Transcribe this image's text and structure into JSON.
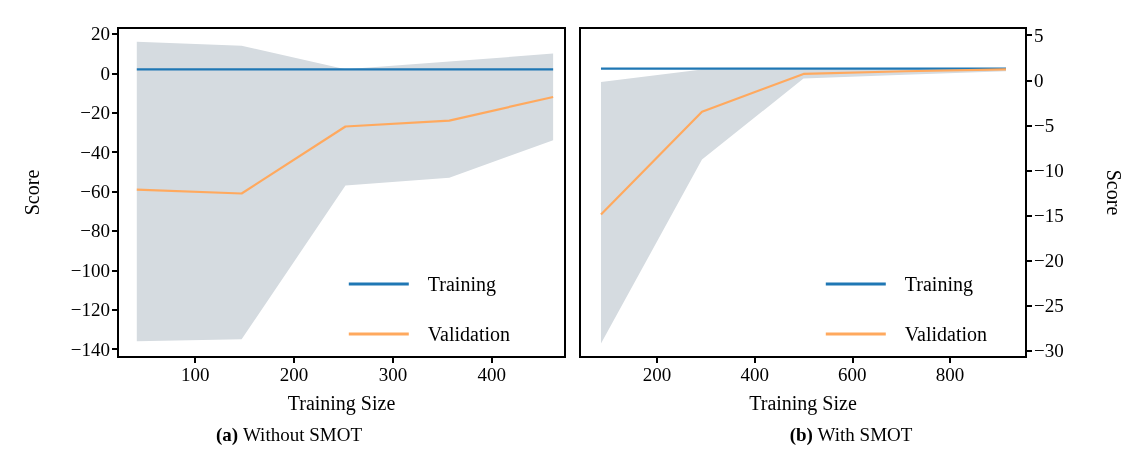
{
  "chart_data": [
    {
      "type": "line",
      "title": "(a) Without SMOT",
      "xlabel": "Training Size",
      "ylabel": "Score",
      "xlim": [
        22,
        474
      ],
      "xticks": [
        100,
        200,
        300,
        400
      ],
      "ylim": [
        -144,
        23
      ],
      "yticks": [
        -140,
        -120,
        -100,
        -80,
        -60,
        -40,
        -20,
        0,
        20
      ],
      "legend": "bottom right",
      "grid": false,
      "series": [
        {
          "name": "Training",
          "color": "#1f77b4",
          "x": [
            41,
            147,
            252,
            357,
            462
          ],
          "values": [
            2,
            2,
            2,
            2,
            2
          ]
        },
        {
          "name": "Validation",
          "color": "#ffa95e",
          "x": [
            41,
            147,
            252,
            357,
            462
          ],
          "values": [
            -59,
            -61,
            -27,
            -24,
            -12
          ],
          "lower": [
            -136,
            -135,
            -57,
            -53,
            -34
          ],
          "upper": [
            16,
            14,
            2,
            6,
            10
          ]
        }
      ]
    },
    {
      "type": "line",
      "title": "(b) With SMOT",
      "xlabel": "Training Size",
      "y2label": "Score",
      "xlim": [
        42,
        956
      ],
      "xticks": [
        200,
        400,
        600,
        800
      ],
      "y2lim": [
        -30.7,
        5.8
      ],
      "y2ticks": [
        -30,
        -25,
        -20,
        -15,
        -10,
        -5,
        0,
        5
      ],
      "legend": "bottom right",
      "grid": false,
      "series": [
        {
          "name": "Training",
          "color": "#1f77b4",
          "axis": "y2",
          "x": [
            85,
            292,
            500,
            708,
            915
          ],
          "values": [
            1.3,
            1.3,
            1.3,
            1.3,
            1.3
          ]
        },
        {
          "name": "Validation",
          "color": "#ffa95e",
          "axis": "y2",
          "x": [
            85,
            292,
            500,
            708,
            915
          ],
          "values": [
            -14.9,
            -3.5,
            0.7,
            1.0,
            1.2
          ],
          "lower": [
            -29.2,
            -8.8,
            0.2,
            0.6,
            1.0
          ],
          "upper": [
            -0.2,
            1.2,
            1.2,
            1.2,
            1.2
          ]
        }
      ]
    }
  ]
}
